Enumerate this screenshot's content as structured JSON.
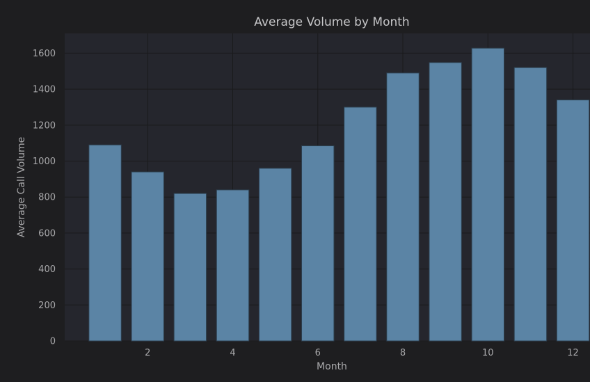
{
  "chart_data": {
    "type": "bar",
    "title": "Average Volume by Month",
    "xlabel": "Month",
    "ylabel": "Average Call Volume",
    "x": [
      1,
      2,
      3,
      4,
      5,
      6,
      7,
      8,
      9,
      10,
      11,
      12
    ],
    "values": [
      1090,
      940,
      820,
      840,
      960,
      1085,
      1300,
      1490,
      1548,
      1628,
      1520,
      1340
    ],
    "xlim": [
      0.05,
      12.4
    ],
    "ylim": [
      0,
      1710
    ],
    "xticks": [
      2,
      4,
      6,
      8,
      10,
      12
    ],
    "yticks": [
      0,
      200,
      400,
      600,
      800,
      1000,
      1200,
      1400,
      1600
    ],
    "grid": true,
    "legend": "none",
    "colors": {
      "bar": "#5b84a5",
      "plot_background": "#25262d",
      "page_background": "#1e1e20"
    }
  }
}
